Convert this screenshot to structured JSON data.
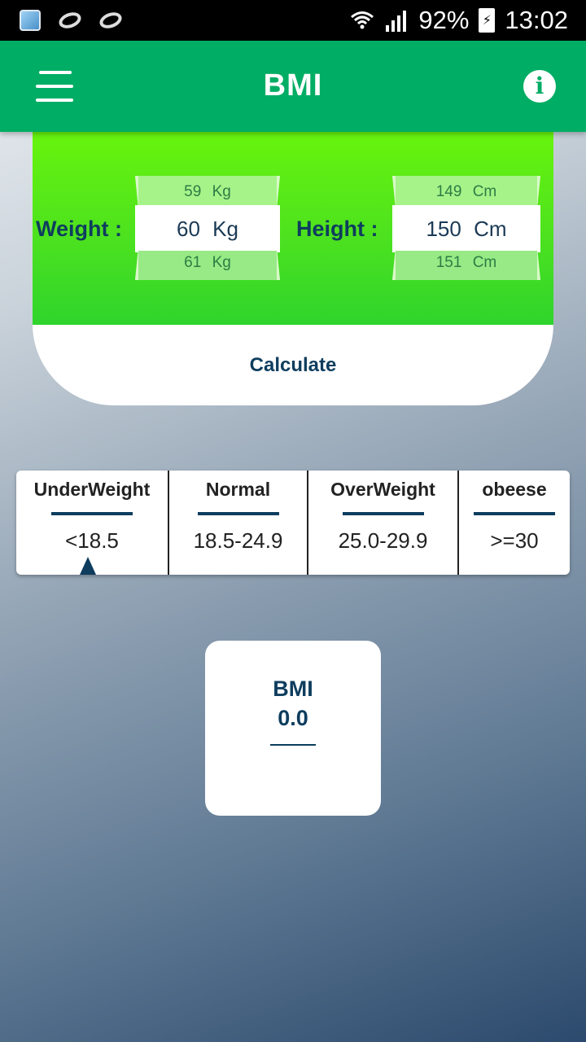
{
  "status_bar": {
    "battery": "92%",
    "time": "13:02",
    "icons": [
      "app-notification-icon",
      "g-icon",
      "g-icon",
      "wifi-icon",
      "signal-icon",
      "battery-charging-icon"
    ]
  },
  "app_bar": {
    "title": "BMI",
    "menu_icon": "hamburger-menu-icon",
    "info_icon": "info-icon"
  },
  "inputs": {
    "weight": {
      "label": "Weight :",
      "prev": "59  Kg",
      "value": "60  Kg",
      "next": "61  Kg"
    },
    "height": {
      "label": "Height :",
      "prev": "149  Cm",
      "value": "150  Cm",
      "next": "151  Cm"
    },
    "calculate_label": "Calculate"
  },
  "categories": [
    {
      "name": "UnderWeight",
      "range": "<18.5"
    },
    {
      "name": "Normal",
      "range": "18.5-24.9"
    },
    {
      "name": "OverWeight",
      "range": "25.0-29.9"
    },
    {
      "name": "obeese",
      "range": ">=30"
    }
  ],
  "result": {
    "label": "BMI",
    "value": "0.0"
  },
  "colors": {
    "app_bar": "#00ad64",
    "panel_top": "#6cf70a",
    "panel_bottom": "#2fd42c",
    "text_dark_blue": "#0e3d5e"
  }
}
